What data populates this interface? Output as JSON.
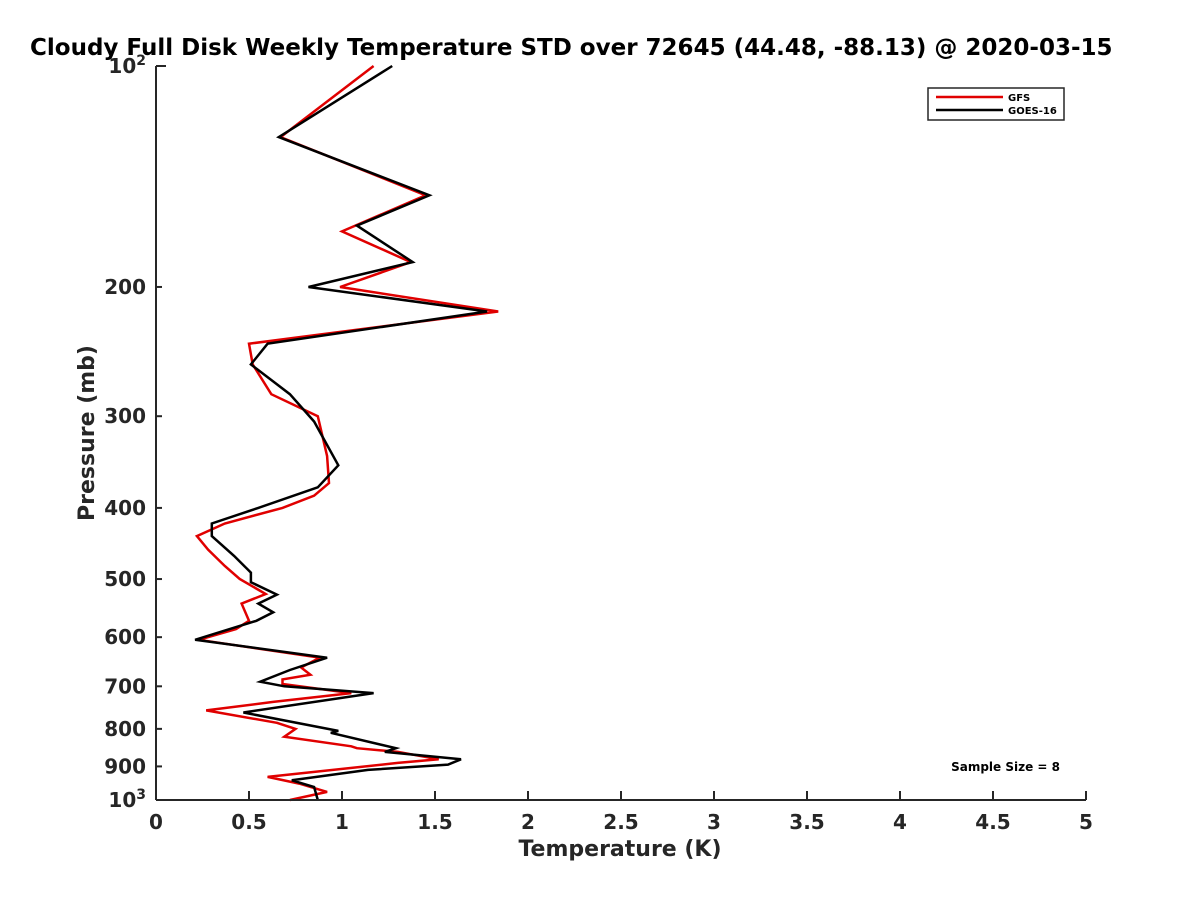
{
  "chart_data": {
    "type": "line",
    "title": "Cloudy Full Disk Weekly Temperature STD over 72645 (44.48, -88.13) @ 2020-03-15",
    "xlabel": "Temperature (K)",
    "ylabel": "Pressure (mb)",
    "xlim": [
      0,
      5
    ],
    "ylim": [
      100,
      1000
    ],
    "y_scale": "log",
    "y_reversed": true,
    "x_ticks": [
      0,
      0.5,
      1,
      1.5,
      2,
      2.5,
      3,
      3.5,
      4,
      4.5,
      5
    ],
    "x_tick_labels": [
      "0",
      "0.5",
      "1",
      "1.5",
      "2",
      "2.5",
      "3",
      "3.5",
      "4",
      "4.5",
      "5"
    ],
    "y_ticks": [
      100,
      200,
      300,
      400,
      500,
      600,
      700,
      800,
      900,
      1000
    ],
    "y_tick_labels": [
      {
        "base": "10",
        "exp": "2"
      },
      {
        "base": "200",
        "exp": ""
      },
      {
        "base": "300",
        "exp": ""
      },
      {
        "base": "400",
        "exp": ""
      },
      {
        "base": "500",
        "exp": ""
      },
      {
        "base": "600",
        "exp": ""
      },
      {
        "base": "700",
        "exp": ""
      },
      {
        "base": "800",
        "exp": ""
      },
      {
        "base": "900",
        "exp": ""
      },
      {
        "base": "10",
        "exp": "3"
      }
    ],
    "grid": false,
    "legend_position": "top-right",
    "annotation": "Sample Size = 8",
    "series": [
      {
        "name": "GFS",
        "color": "#e00000",
        "points": [
          [
            1.17,
            100
          ],
          [
            0.67,
            125
          ],
          [
            1.45,
            150
          ],
          [
            1.0,
            168
          ],
          [
            1.37,
            185
          ],
          [
            0.99,
            200
          ],
          [
            1.84,
            216
          ],
          [
            0.5,
            239
          ],
          [
            0.52,
            255
          ],
          [
            0.62,
            280
          ],
          [
            0.87,
            300
          ],
          [
            0.92,
            340
          ],
          [
            0.93,
            370
          ],
          [
            0.85,
            385
          ],
          [
            0.68,
            400
          ],
          [
            0.37,
            420
          ],
          [
            0.22,
            437
          ],
          [
            0.28,
            456
          ],
          [
            0.37,
            480
          ],
          [
            0.45,
            500
          ],
          [
            0.59,
            524
          ],
          [
            0.46,
            540
          ],
          [
            0.5,
            570
          ],
          [
            0.43,
            585
          ],
          [
            0.23,
            605
          ],
          [
            0.88,
            640
          ],
          [
            0.78,
            660
          ],
          [
            0.83,
            675
          ],
          [
            0.68,
            685
          ],
          [
            0.68,
            695
          ],
          [
            1.05,
            715
          ],
          [
            0.63,
            735
          ],
          [
            0.27,
            755
          ],
          [
            0.65,
            785
          ],
          [
            0.75,
            800
          ],
          [
            0.69,
            820
          ],
          [
            1.05,
            845
          ],
          [
            1.08,
            850
          ],
          [
            1.3,
            860
          ],
          [
            1.52,
            880
          ],
          [
            1.3,
            890
          ],
          [
            0.6,
            930
          ],
          [
            0.77,
            950
          ],
          [
            0.92,
            975
          ],
          [
            0.72,
            1000
          ]
        ]
      },
      {
        "name": "GOES-16",
        "color": "#000000",
        "points": [
          [
            1.27,
            100
          ],
          [
            0.66,
            125
          ],
          [
            1.47,
            150
          ],
          [
            1.08,
            165
          ],
          [
            1.38,
            185
          ],
          [
            0.82,
            200
          ],
          [
            1.78,
            216
          ],
          [
            0.6,
            239
          ],
          [
            0.51,
            255
          ],
          [
            0.72,
            280
          ],
          [
            0.85,
            305
          ],
          [
            0.98,
            350
          ],
          [
            0.87,
            375
          ],
          [
            0.55,
            400
          ],
          [
            0.3,
            420
          ],
          [
            0.3,
            437
          ],
          [
            0.42,
            465
          ],
          [
            0.51,
            490
          ],
          [
            0.51,
            505
          ],
          [
            0.65,
            525
          ],
          [
            0.55,
            540
          ],
          [
            0.63,
            555
          ],
          [
            0.54,
            570
          ],
          [
            0.21,
            605
          ],
          [
            0.92,
            640
          ],
          [
            0.72,
            665
          ],
          [
            0.56,
            690
          ],
          [
            0.69,
            700
          ],
          [
            1.17,
            715
          ],
          [
            0.47,
            760
          ],
          [
            0.98,
            805
          ],
          [
            0.94,
            810
          ],
          [
            1.29,
            850
          ],
          [
            1.23,
            860
          ],
          [
            1.64,
            880
          ],
          [
            1.57,
            895
          ],
          [
            1.14,
            910
          ],
          [
            0.73,
            940
          ],
          [
            0.85,
            960
          ],
          [
            0.87,
            1000
          ]
        ]
      }
    ]
  }
}
